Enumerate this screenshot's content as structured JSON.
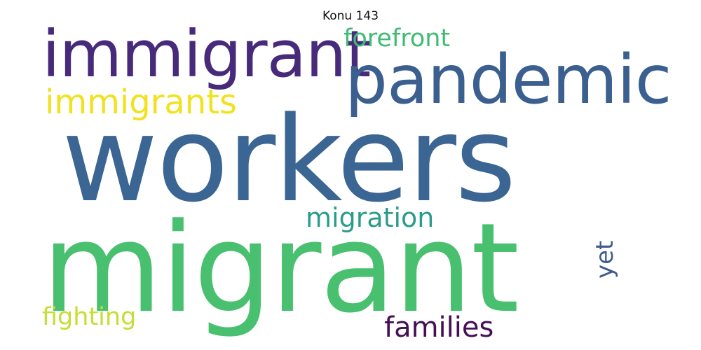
{
  "title": "Konu 143",
  "words": {
    "workers": {
      "text": "workers",
      "color": "#3b6592"
    },
    "migrant": {
      "text": "migrant",
      "color": "#48c06f"
    },
    "pandemic": {
      "text": "pandemic",
      "color": "#3b5f8e"
    },
    "immigrant": {
      "text": "immigrant",
      "color": "#472a7a"
    },
    "immigrants": {
      "text": "immigrants",
      "color": "#f1e21f"
    },
    "forefront": {
      "text": "forefront",
      "color": "#3fbc74"
    },
    "migration": {
      "text": "migration",
      "color": "#2a9d8a"
    },
    "fighting": {
      "text": "fighting",
      "color": "#c5de33"
    },
    "families": {
      "text": "families",
      "color": "#440f55"
    },
    "yet": {
      "text": "yet",
      "color": "#3f5b8c"
    }
  }
}
